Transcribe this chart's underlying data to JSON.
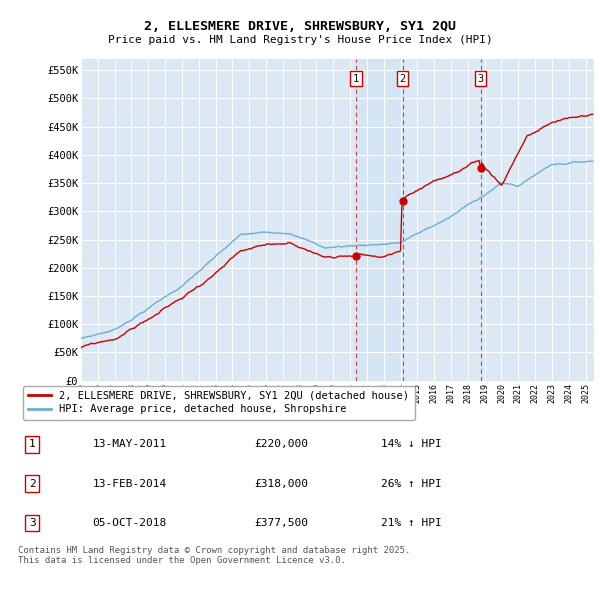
{
  "title": "2, ELLESMERE DRIVE, SHREWSBURY, SY1 2QU",
  "subtitle": "Price paid vs. HM Land Registry's House Price Index (HPI)",
  "ylim": [
    0,
    570000
  ],
  "yticks": [
    0,
    50000,
    100000,
    150000,
    200000,
    250000,
    300000,
    350000,
    400000,
    450000,
    500000,
    550000
  ],
  "ytick_labels": [
    "£0",
    "£50K",
    "£100K",
    "£150K",
    "£200K",
    "£250K",
    "£300K",
    "£350K",
    "£400K",
    "£450K",
    "£500K",
    "£550K"
  ],
  "background_color": "#ffffff",
  "plot_bg_color": "#dce9f5",
  "grid_color": "#ffffff",
  "sale_dates_num": [
    2011.36,
    2014.12,
    2018.76
  ],
  "sale_prices": [
    220000,
    318000,
    377500
  ],
  "sale_labels": [
    "1",
    "2",
    "3"
  ],
  "legend_line_label": "2, ELLESMERE DRIVE, SHREWSBURY, SY1 2QU (detached house)",
  "legend_hpi_label": "HPI: Average price, detached house, Shropshire",
  "footer_text": "Contains HM Land Registry data © Crown copyright and database right 2025.\nThis data is licensed under the Open Government Licence v3.0.",
  "table_data": [
    [
      "1",
      "13-MAY-2011",
      "£220,000",
      "14% ↓ HPI"
    ],
    [
      "2",
      "13-FEB-2014",
      "£318,000",
      "26% ↑ HPI"
    ],
    [
      "3",
      "05-OCT-2018",
      "£377,500",
      "21% ↑ HPI"
    ]
  ],
  "hpi_color": "#6baed6",
  "price_color": "#cc0000",
  "dashed_line_color": "#cc0000",
  "shade_color": "#d0e4f5"
}
